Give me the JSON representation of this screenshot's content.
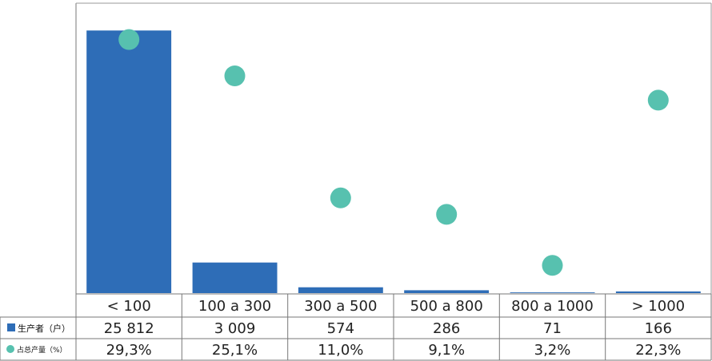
{
  "chart_data": {
    "type": "bar",
    "categories": [
      "< 100",
      "100 a 300",
      "300 a 500",
      "500 a 800",
      "800 a 1000",
      "> 1000"
    ],
    "series": [
      {
        "name": "生产者（户）",
        "kind": "bar",
        "color": "#2E6DB7",
        "values": [
          25812,
          3009,
          574,
          286,
          71,
          166
        ],
        "labels": [
          "25 812",
          "3 009",
          "574",
          "286",
          "71",
          "166"
        ]
      },
      {
        "name": "占总产量（%）",
        "kind": "scatter",
        "color": "#57C1AF",
        "values": [
          29.3,
          25.1,
          11.0,
          9.1,
          3.2,
          22.3
        ],
        "labels": [
          "29,3%",
          "25,1%",
          "11,0%",
          "9,1%",
          "3,2%",
          "22,3%"
        ]
      }
    ],
    "title": "",
    "xlabel": "",
    "ylabel": "",
    "ylim_bars": [
      0,
      28500
    ],
    "ylim_points": [
      0,
      33.5
    ],
    "grid": false,
    "legend": "data-table"
  }
}
